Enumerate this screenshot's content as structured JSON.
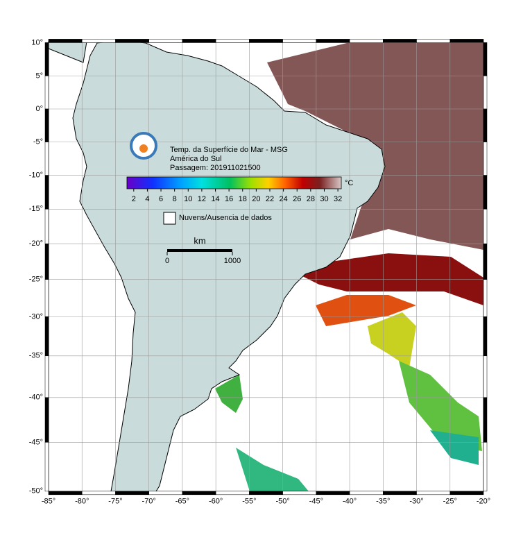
{
  "map": {
    "title": "Temp. da Superfície do Mar - MSG",
    "subtitle": "América do Sul",
    "pass": "Passagem: 201911021500",
    "xlim": [
      -85,
      -20
    ],
    "ylim": [
      -50,
      10
    ],
    "xticks": [
      {
        "value": -85,
        "label": "-85°"
      },
      {
        "value": -80,
        "label": "-80°"
      },
      {
        "value": -75,
        "label": "-75°"
      },
      {
        "value": -70,
        "label": "-70°"
      },
      {
        "value": -65,
        "label": "-65°"
      },
      {
        "value": -60,
        "label": "-60°"
      },
      {
        "value": -55,
        "label": "-55°"
      },
      {
        "value": -50,
        "label": "-50°"
      },
      {
        "value": -45,
        "label": "-45°"
      },
      {
        "value": -40,
        "label": "-40°"
      },
      {
        "value": -35,
        "label": "-35°"
      },
      {
        "value": -30,
        "label": "-30°"
      },
      {
        "value": -25,
        "label": "-25°"
      },
      {
        "value": -20,
        "label": "-20°"
      }
    ],
    "yticks": [
      {
        "value": 10,
        "label": "10°"
      },
      {
        "value": 5,
        "label": "5°"
      },
      {
        "value": 0,
        "label": "0°"
      },
      {
        "value": -5,
        "label": "-5°"
      },
      {
        "value": -10,
        "label": "-10°"
      },
      {
        "value": -15,
        "label": "-15°"
      },
      {
        "value": -20,
        "label": "-20°"
      },
      {
        "value": -25,
        "label": "-25°"
      },
      {
        "value": -30,
        "label": "-30°"
      },
      {
        "value": -35,
        "label": "-35°"
      },
      {
        "value": -40,
        "label": "-40°"
      },
      {
        "value": -45,
        "label": "-45°"
      },
      {
        "value": -50,
        "label": "-50°"
      }
    ],
    "grid": true,
    "colorbar": {
      "clim": [
        1,
        32.5
      ],
      "ticks": [
        2,
        4,
        6,
        8,
        10,
        12,
        14,
        16,
        18,
        20,
        22,
        24,
        26,
        28,
        30,
        32
      ],
      "unit": "°C"
    },
    "legend": "Nuvens/Ausencia de dados",
    "scalebar": {
      "unit": "km",
      "ticks": [
        0,
        1000
      ]
    }
  }
}
